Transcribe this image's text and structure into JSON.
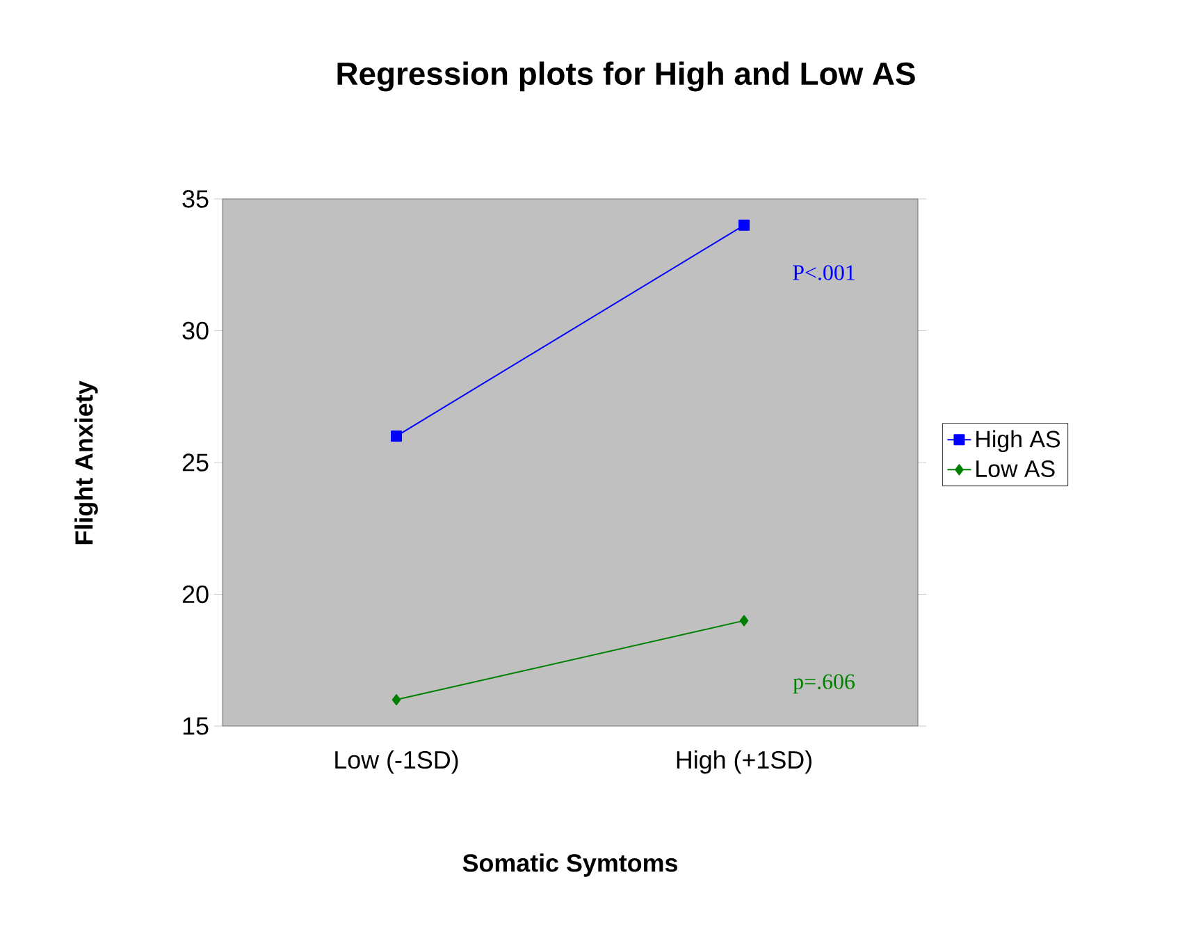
{
  "chart_data": {
    "type": "line",
    "title": "Regression plots for High and Low AS",
    "xlabel": "Somatic Symtoms",
    "ylabel": "Flight Anxiety",
    "categories": [
      "Low (-1SD)",
      "High (+1SD)"
    ],
    "series": [
      {
        "name": "High AS",
        "color": "#0000ff",
        "marker": "square",
        "values": [
          26,
          34
        ]
      },
      {
        "name": "Low AS",
        "color": "#008000",
        "marker": "diamond",
        "values": [
          16,
          19
        ]
      }
    ],
    "ylim": [
      15,
      35
    ],
    "yticks": [
      15,
      20,
      25,
      30,
      35
    ],
    "legend": "right",
    "grid": false,
    "annotations": [
      "P<.001",
      "p=.606"
    ]
  }
}
